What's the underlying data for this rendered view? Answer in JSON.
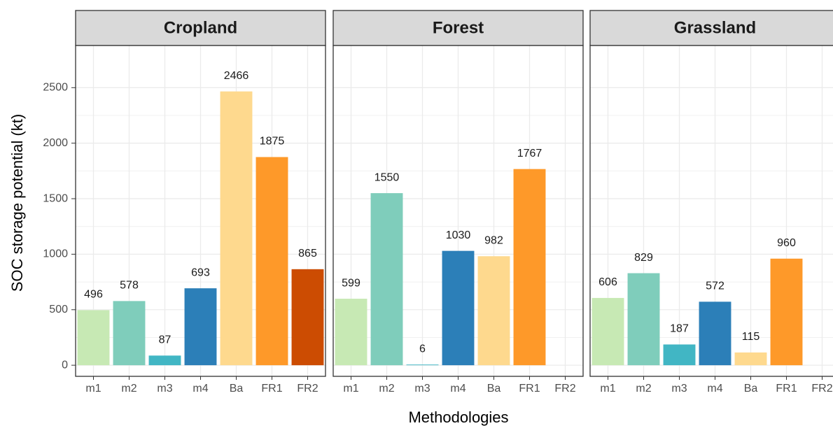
{
  "chart_data": {
    "type": "bar",
    "ylabel": "SOC storage potential (kt)",
    "xlabel": "Methodologies",
    "categories": [
      "m1",
      "m2",
      "m3",
      "m4",
      "Ba",
      "FR1",
      "FR2"
    ],
    "colors": [
      "#c7e9b4",
      "#7fcdbb",
      "#41b6c4",
      "#2c7fb8",
      "#fed98e",
      "#fe9929",
      "#cc4c02"
    ],
    "ylim": [
      -100,
      2880
    ],
    "yticks": [
      0,
      500,
      1000,
      1500,
      2000,
      2500
    ],
    "grid": true,
    "facets": [
      {
        "title": "Cropland",
        "values": [
          496,
          578,
          87,
          693,
          2466,
          1875,
          865
        ]
      },
      {
        "title": "Forest",
        "values": [
          599,
          1550,
          6,
          1030,
          982,
          1767,
          null
        ]
      },
      {
        "title": "Grassland",
        "values": [
          606,
          829,
          187,
          572,
          115,
          960,
          null
        ]
      }
    ]
  }
}
